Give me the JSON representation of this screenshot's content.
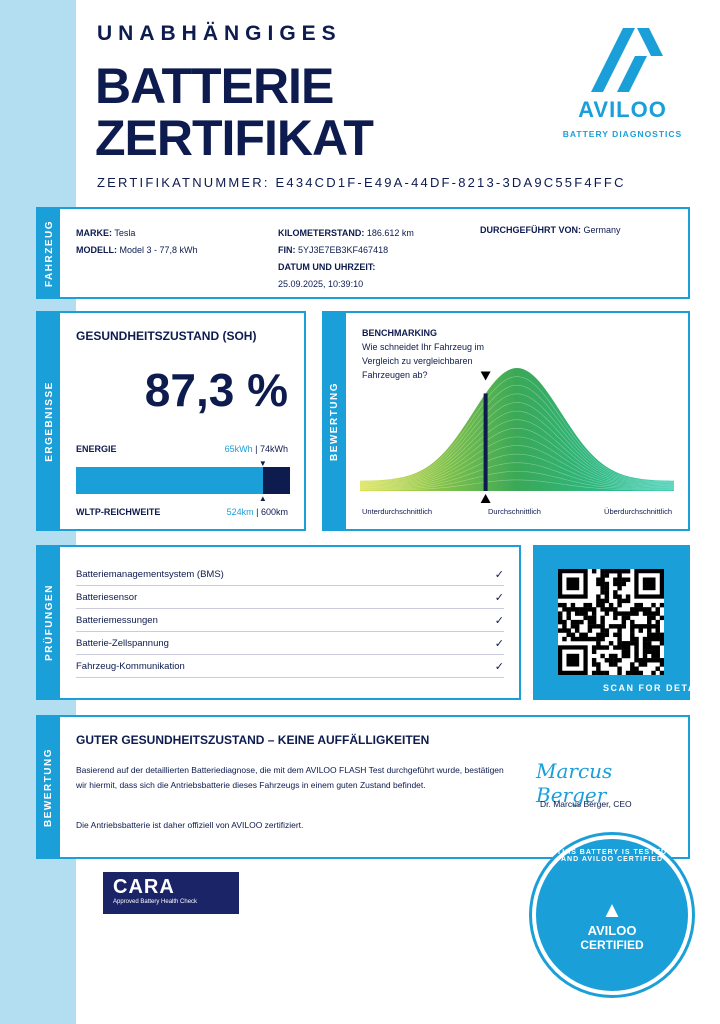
{
  "header": {
    "kicker": "UNABHÄNGIGES",
    "title_line1": "BATTERIE",
    "title_line2": "ZERTIFIKAT",
    "cert_label": "ZERTIFIKATNUMMER:",
    "cert_number": "E434CD1F-E49A-44DF-8213-3DA9C55F4FFC"
  },
  "logo": {
    "name": "AVILOO",
    "tagline": "BATTERY DIAGNOSTICS"
  },
  "vehicle": {
    "section": "FAHRZEUG",
    "brand_label": "MARKE:",
    "brand": "Tesla",
    "model_label": "MODELL:",
    "model": "Model 3 - 77,8 kWh",
    "km_label": "KILOMETERSTAND:",
    "km": "186.612 km",
    "vin_label": "FIN:",
    "vin": "5YJ3E7EB3KF467418",
    "date_label": "DATUM UND UHRZEIT:",
    "date": "25.09.2025, 10:39:10",
    "by_label": "DURCHGEFÜHRT VON:",
    "by": "Germany"
  },
  "results": {
    "section": "ERGEBNISSE",
    "soh_title": "GESUNDHEITSZUSTAND (SOH)",
    "soh": "87,3 %",
    "soh_fraction": 0.873,
    "energy_label": "ENERGIE",
    "energy_current": "65kWh",
    "energy_sep": "|",
    "energy_nominal": "74kWh",
    "range_label": "WLTP-REICHWEITE",
    "range_current": "524km",
    "range_sep": "|",
    "range_nominal": "600km"
  },
  "benchmark": {
    "section": "BEWERTUNG",
    "title": "BENCHMARKING",
    "question": "Wie schneidet Ihr Fahrzeug im Vergleich zu vergleichbaren Fahrzeugen ab?",
    "marker_position": 0.4,
    "low": "Unterdurchschnittlich",
    "mid": "Durchschnittlich",
    "high": "Überdurchschnittlich"
  },
  "checks": {
    "section": "PRÜFUNGEN",
    "items": [
      {
        "label": "Batteriemanagementsystem (BMS)",
        "status": "✓"
      },
      {
        "label": "Batteriesensor",
        "status": "✓"
      },
      {
        "label": "Batteriemessungen",
        "status": "✓"
      },
      {
        "label": "Batterie-Zellspannung",
        "status": "✓"
      },
      {
        "label": "Fahrzeug-Kommunikation",
        "status": "✓"
      }
    ]
  },
  "qr": {
    "caption": "SCAN FOR DETAILS"
  },
  "verdict": {
    "section": "BEWERTUNG",
    "title": "GUTER GESUNDHEITSZUSTAND – KEINE AUFFÄLLIGKEITEN",
    "body": "Basierend auf der detaillierten Batteriediagnose, die mit dem AVILOO FLASH Test durchgeführt wurde, bestätigen wir hiermit, dass sich die Antriebsbatterie dieses Fahrzeugs in einem guten Zustand befindet.",
    "body2": "Die Antriebsbatterie ist daher offiziell von AVILOO zertifiziert.",
    "signature": "Marcus Berger",
    "signer": "Dr. Marcus Berger, CEO"
  },
  "cara": {
    "name": "CARA",
    "sub": "Approved Battery Health Check"
  },
  "seal": {
    "ring": "THIS BATTERY IS TESTED AND AVILOO CERTIFIED",
    "name": "AVILOO",
    "label": "CERTIFIED"
  },
  "colors": {
    "navy": "#0d1b4f",
    "blue": "#1a9fd9",
    "strip": "#b3def2"
  }
}
